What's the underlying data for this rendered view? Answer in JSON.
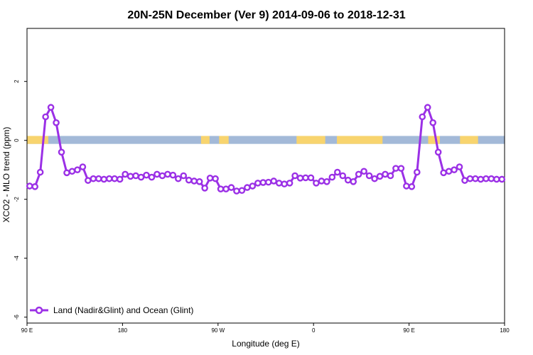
{
  "chart_data": {
    "type": "line",
    "title": "20N-25N December (Ver 9)   2014-09-06 to 2018-12-31",
    "xlabel": "Longitude (deg E)",
    "ylabel": "XCO2 - MLO trend (ppm)",
    "xlim": [
      90,
      540
    ],
    "ylim": [
      -6.2,
      3.8
    ],
    "x_ticks": [
      {
        "value": 90,
        "label": "90 E"
      },
      {
        "value": 180,
        "label": "180"
      },
      {
        "value": 270,
        "label": "90 W"
      },
      {
        "value": 360,
        "label": "0"
      },
      {
        "value": 450,
        "label": "90 E"
      },
      {
        "value": 540,
        "label": "180"
      }
    ],
    "y_ticks": [
      {
        "value": 2,
        "label": "2"
      },
      {
        "value": 0,
        "label": "0"
      },
      {
        "value": -2,
        "label": "-2"
      },
      {
        "value": -4,
        "label": "-4"
      },
      {
        "value": -6,
        "label": "-6"
      }
    ],
    "land_ocean_strip": {
      "y_range": [
        -0.12,
        0.15
      ],
      "ocean_color": "#a3b9d8",
      "land_color": "#f8d46e",
      "land_segments": [
        [
          90,
          110
        ],
        [
          254,
          262
        ],
        [
          271,
          280
        ],
        [
          344,
          371
        ],
        [
          382,
          425
        ],
        [
          468,
          479
        ],
        [
          498,
          515
        ]
      ]
    },
    "series": [
      {
        "name": "Land (Nadir&Glint) and Ocean (Glint)",
        "color": "#9b30e6",
        "x": [
          92.5,
          97.5,
          102.5,
          107.5,
          112.5,
          117.5,
          122.5,
          127.5,
          132.5,
          137.5,
          142.5,
          147.5,
          152.5,
          157.5,
          162.5,
          167.5,
          172.5,
          177.5,
          182.5,
          187.5,
          192.5,
          197.5,
          202.5,
          207.5,
          212.5,
          217.5,
          222.5,
          227.5,
          232.5,
          237.5,
          242.5,
          247.5,
          252.5,
          257.5,
          262.5,
          267.5,
          272.5,
          277.5,
          282.5,
          287.5,
          292.5,
          297.5,
          302.5,
          307.5,
          312.5,
          317.5,
          322.5,
          327.5,
          332.5,
          337.5,
          342.5,
          347.5,
          352.5,
          357.5,
          362.5,
          367.5,
          372.5,
          377.5,
          382.5,
          387.5,
          392.5,
          397.5,
          402.5,
          407.5,
          412.5,
          417.5,
          422.5,
          427.5,
          432.5,
          437.5,
          442.5,
          447.5,
          452.5,
          457.5,
          462.5,
          467.5,
          472.5,
          477.5,
          482.5,
          487.5,
          492.5,
          497.5,
          502.5,
          507.5,
          512.5,
          517.5,
          522.5,
          527.5,
          532.5,
          537.5
        ],
        "values": [
          -1.55,
          -1.57,
          -1.08,
          0.8,
          1.12,
          0.6,
          -0.4,
          -1.1,
          -1.05,
          -1.0,
          -0.9,
          -1.36,
          -1.3,
          -1.3,
          -1.32,
          -1.3,
          -1.3,
          -1.32,
          -1.15,
          -1.22,
          -1.2,
          -1.25,
          -1.18,
          -1.25,
          -1.15,
          -1.2,
          -1.15,
          -1.18,
          -1.3,
          -1.2,
          -1.35,
          -1.38,
          -1.4,
          -1.62,
          -1.28,
          -1.3,
          -1.65,
          -1.65,
          -1.6,
          -1.72,
          -1.7,
          -1.6,
          -1.55,
          -1.45,
          -1.43,
          -1.42,
          -1.38,
          -1.45,
          -1.48,
          -1.45,
          -1.2,
          -1.28,
          -1.27,
          -1.27,
          -1.45,
          -1.38,
          -1.4,
          -1.25,
          -1.08,
          -1.2,
          -1.35,
          -1.4,
          -1.15,
          -1.05,
          -1.2,
          -1.3,
          -1.22,
          -1.15,
          -1.2,
          -0.95,
          -0.95,
          -1.55,
          -1.57,
          -1.08,
          0.8,
          1.12,
          0.6,
          -0.4,
          -1.1,
          -1.05,
          -1.0,
          -0.9,
          -1.36,
          -1.3,
          -1.3,
          -1.32,
          -1.3,
          -1.3,
          -1.32,
          -1.32
        ]
      }
    ],
    "legend": {
      "position": "bottom-left",
      "label": "Land (Nadir&Glint) and Ocean (Glint)"
    },
    "grid": false
  }
}
